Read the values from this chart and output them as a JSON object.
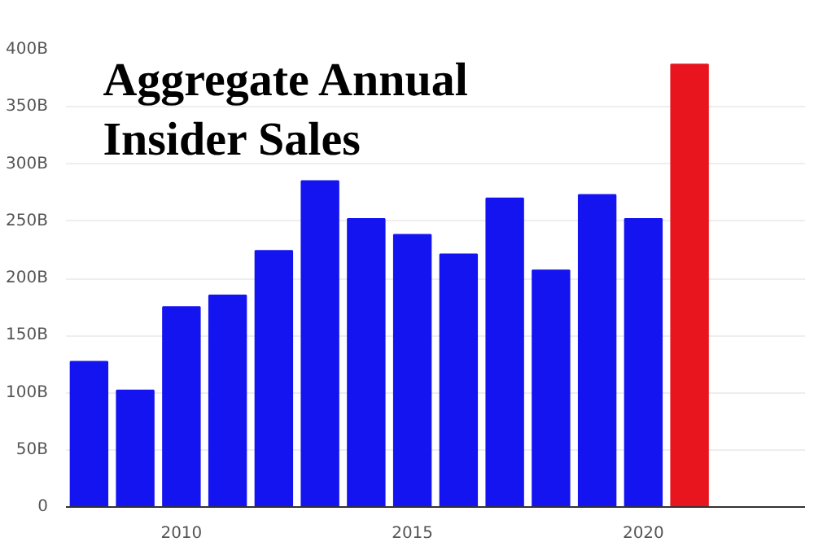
{
  "chart_data": {
    "type": "bar",
    "title": "Aggregate Annual\nInsider Sales",
    "x": [
      2008,
      2009,
      2010,
      2011,
      2012,
      2013,
      2014,
      2015,
      2016,
      2017,
      2018,
      2019,
      2020,
      2021
    ],
    "values": [
      127,
      102,
      175,
      185,
      224,
      285,
      252,
      238,
      221,
      270,
      207,
      273,
      252,
      387
    ],
    "colors": [
      "#1414f0",
      "#1414f0",
      "#1414f0",
      "#1414f0",
      "#1414f0",
      "#1414f0",
      "#1414f0",
      "#1414f0",
      "#1414f0",
      "#1414f0",
      "#1414f0",
      "#1414f0",
      "#1414f0",
      "#e8141e"
    ],
    "xlim": [
      2007.5,
      2023.5
    ],
    "xticks": [
      2010,
      2015,
      2020
    ],
    "ylim": [
      0,
      400
    ],
    "yticks": [
      0,
      {
        "value": 50,
        "label": "50B"
      },
      {
        "value": 100,
        "label": "100B"
      },
      {
        "value": 150,
        "label": "150B"
      },
      {
        "value": 200,
        "label": "200B"
      },
      {
        "value": 250,
        "label": "250B"
      },
      {
        "value": 300,
        "label": "300B"
      },
      {
        "value": 350,
        "label": "350B"
      },
      {
        "value": 400,
        "label": "400B"
      }
    ],
    "grid": "y"
  }
}
